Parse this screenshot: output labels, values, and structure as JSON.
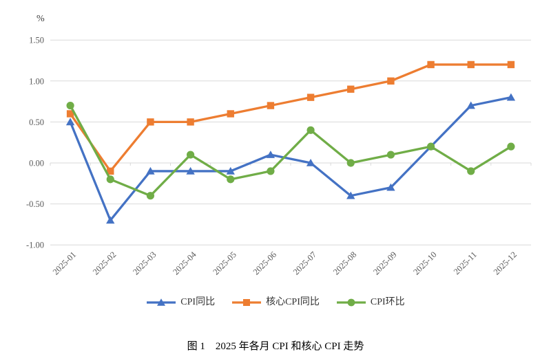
{
  "figure": {
    "caption": "图 1　2025 年各月 CPI 和核心 CPI 走势"
  },
  "chart_data": {
    "type": "line",
    "title": "",
    "xlabel": "",
    "ylabel": "%",
    "categories": [
      "2025-01",
      "2025-02",
      "2025-03",
      "2025-04",
      "2025-05",
      "2025-06",
      "2025-07",
      "2025-08",
      "2025-09",
      "2025-10",
      "2025-11",
      "2025-12"
    ],
    "y_ticks": [
      "1.50",
      "1.00",
      "0.50",
      "0.00",
      "-0.50",
      "-1.00"
    ],
    "ylim": [
      -1.0,
      1.5
    ],
    "grid": "horizontal",
    "legend_position": "bottom",
    "colors": {
      "grid": "#d9d9d9",
      "axis_text": "#595959"
    },
    "series": [
      {
        "name": "CPI同比",
        "marker": "triangle",
        "color": "#4472C4",
        "values": [
          0.5,
          -0.7,
          -0.1,
          -0.1,
          -0.1,
          0.1,
          0.0,
          -0.4,
          -0.3,
          0.2,
          0.7,
          0.8
        ]
      },
      {
        "name": "核心CPI同比",
        "marker": "square",
        "color": "#ED7D31",
        "values": [
          0.6,
          -0.1,
          0.5,
          0.5,
          0.6,
          0.7,
          0.8,
          0.9,
          1.0,
          1.2,
          1.2,
          1.2
        ]
      },
      {
        "name": "CPI环比",
        "marker": "circle",
        "color": "#70AD47",
        "values": [
          0.7,
          -0.2,
          -0.4,
          0.1,
          -0.2,
          -0.1,
          0.4,
          0.0,
          0.1,
          0.2,
          -0.1,
          0.2
        ]
      }
    ]
  }
}
